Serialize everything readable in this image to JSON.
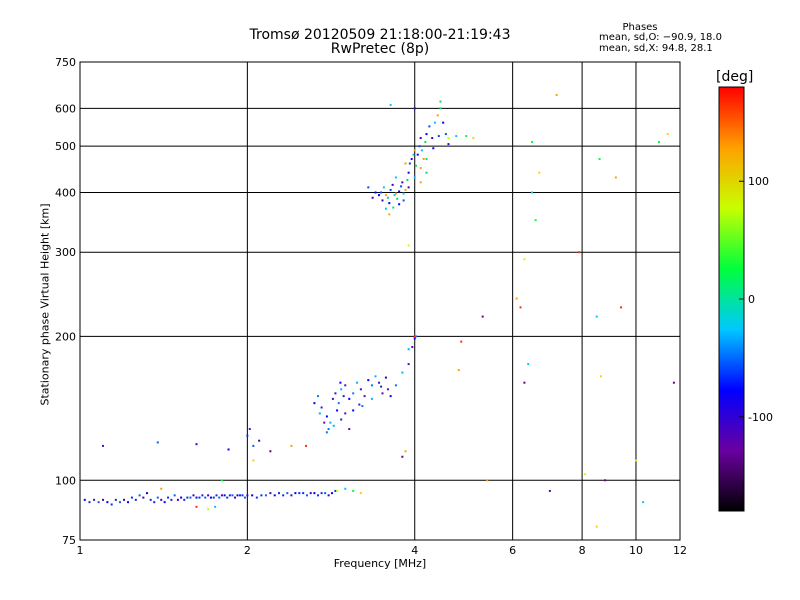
{
  "chart_data": {
    "type": "scatter",
    "title": "Tromsø 20120509 21:18:00-21:19:43",
    "subtitle": "RwPretec (8p)",
    "xlabel": "Frequency [MHz]",
    "ylabel": "Stationary phase Virtual Height [km]",
    "x_scale": "log",
    "y_scale": "log",
    "xlim": [
      1,
      12
    ],
    "ylim": [
      75,
      750
    ],
    "x_ticks": [
      1,
      2,
      4,
      6,
      8,
      10,
      12
    ],
    "y_ticks": [
      75,
      100,
      200,
      300,
      400,
      500,
      600,
      750
    ],
    "grid": true,
    "phases_box": {
      "heading": "Phases",
      "line_o": "mean, sd,O: −90.9, 18.0",
      "line_x": "mean, sd,X:  94.8, 28.1"
    },
    "colorbar": {
      "unit": "[deg]",
      "range": [
        -180,
        180
      ],
      "ticks": [
        -100,
        0,
        100
      ],
      "colors": [
        "#000000",
        "#6a00a0",
        "#0000ff",
        "#00c8ff",
        "#00ff3c",
        "#c8ff00",
        "#ffa000",
        "#ff0000"
      ]
    },
    "series": [
      {
        "points": [
          [
            1.02,
            91
          ],
          [
            1.04,
            90
          ],
          [
            1.06,
            91
          ],
          [
            1.08,
            90
          ],
          [
            1.1,
            91
          ],
          [
            1.12,
            90
          ],
          [
            1.14,
            89
          ],
          [
            1.16,
            91
          ],
          [
            1.18,
            90
          ],
          [
            1.2,
            91
          ],
          [
            1.22,
            90
          ],
          [
            1.24,
            92
          ],
          [
            1.26,
            91
          ],
          [
            1.28,
            93
          ],
          [
            1.3,
            92
          ],
          [
            1.32,
            94
          ],
          [
            1.34,
            91
          ],
          [
            1.36,
            90
          ],
          [
            1.38,
            92
          ],
          [
            1.4,
            91
          ],
          [
            1.42,
            90
          ],
          [
            1.44,
            92
          ],
          [
            1.46,
            91
          ],
          [
            1.48,
            93
          ],
          [
            1.5,
            91
          ],
          [
            1.52,
            92
          ],
          [
            1.54,
            91
          ],
          [
            1.56,
            92
          ],
          [
            1.58,
            92
          ],
          [
            1.6,
            93
          ],
          [
            1.62,
            92
          ],
          [
            1.64,
            92
          ],
          [
            1.66,
            93
          ],
          [
            1.68,
            92
          ],
          [
            1.7,
            93
          ],
          [
            1.72,
            92
          ],
          [
            1.74,
            92
          ],
          [
            1.76,
            93
          ],
          [
            1.78,
            92
          ],
          [
            1.8,
            93
          ],
          [
            1.82,
            93
          ],
          [
            1.84,
            92
          ],
          [
            1.86,
            93
          ],
          [
            1.88,
            93
          ],
          [
            1.9,
            92
          ],
          [
            1.92,
            93
          ],
          [
            1.94,
            93
          ],
          [
            1.96,
            93
          ],
          [
            1.98,
            92
          ],
          [
            2.0,
            93
          ],
          [
            2.04,
            93
          ],
          [
            2.08,
            92
          ],
          [
            2.12,
            93
          ],
          [
            2.16,
            93
          ],
          [
            2.2,
            94
          ],
          [
            2.24,
            93
          ],
          [
            2.28,
            94
          ],
          [
            2.32,
            93
          ],
          [
            2.36,
            94
          ],
          [
            2.4,
            93
          ],
          [
            2.44,
            94
          ],
          [
            2.48,
            94
          ],
          [
            2.52,
            94
          ],
          [
            2.56,
            93
          ],
          [
            2.6,
            94
          ],
          [
            2.64,
            94
          ],
          [
            2.68,
            93
          ],
          [
            2.72,
            94
          ],
          [
            2.76,
            94
          ],
          [
            2.8,
            93
          ],
          [
            2.84,
            94
          ],
          [
            2.88,
            95
          ],
          [
            1.1,
            118
          ],
          [
            1.38,
            120
          ],
          [
            1.62,
            119
          ],
          [
            1.85,
            116
          ],
          [
            2.0,
            124
          ],
          [
            2.02,
            128
          ],
          [
            2.05,
            118
          ],
          [
            2.1,
            121
          ]
        ]
      },
      {
        "points": [
          [
            2.64,
            145
          ],
          [
            2.68,
            150
          ],
          [
            2.7,
            138
          ],
          [
            2.72,
            142
          ],
          [
            2.75,
            132
          ],
          [
            2.78,
            136
          ],
          [
            2.8,
            128
          ],
          [
            2.82,
            132
          ],
          [
            2.85,
            148
          ],
          [
            2.88,
            152
          ],
          [
            2.9,
            140
          ],
          [
            2.92,
            145
          ],
          [
            2.95,
            155
          ],
          [
            2.98,
            150
          ],
          [
            3.0,
            158
          ],
          [
            3.05,
            148
          ],
          [
            3.1,
            152
          ],
          [
            3.15,
            160
          ],
          [
            3.2,
            155
          ],
          [
            3.25,
            150
          ],
          [
            3.3,
            162
          ],
          [
            3.35,
            158
          ],
          [
            3.4,
            165
          ],
          [
            3.45,
            160
          ],
          [
            3.5,
            152
          ],
          [
            3.55,
            164
          ],
          [
            2.78,
            126
          ],
          [
            2.86,
            130
          ],
          [
            2.95,
            134
          ],
          [
            3.05,
            128
          ],
          [
            3.1,
            140
          ],
          [
            3.22,
            143
          ],
          [
            3.35,
            148
          ],
          [
            3.48,
            157
          ],
          [
            3.58,
            155
          ],
          [
            3.62,
            150
          ],
          [
            3.7,
            158
          ],
          [
            3.8,
            168
          ],
          [
            3.9,
            175
          ],
          [
            3.96,
            190
          ],
          [
            4.0,
            198
          ],
          [
            4.02,
            200
          ],
          [
            3.9,
            188
          ],
          [
            3.18,
            144
          ],
          [
            3.0,
            138
          ],
          [
            2.94,
            160
          ]
        ]
      },
      {
        "points": [
          [
            3.45,
            395
          ],
          [
            3.48,
            400
          ],
          [
            3.5,
            385
          ],
          [
            3.52,
            410
          ],
          [
            3.55,
            395
          ],
          [
            3.58,
            390
          ],
          [
            3.6,
            380
          ],
          [
            3.62,
            405
          ],
          [
            3.65,
            415
          ],
          [
            3.68,
            395
          ],
          [
            3.7,
            398
          ],
          [
            3.72,
            388
          ],
          [
            3.75,
            402
          ],
          [
            3.78,
            412
          ],
          [
            3.8,
            420
          ],
          [
            3.82,
            398
          ],
          [
            3.85,
            405
          ],
          [
            3.88,
            425
          ],
          [
            3.9,
            440
          ],
          [
            3.92,
            460
          ],
          [
            3.95,
            470
          ],
          [
            3.98,
            480
          ],
          [
            4.0,
            490
          ],
          [
            4.02,
            455
          ],
          [
            4.05,
            480
          ],
          [
            4.08,
            500
          ],
          [
            4.1,
            520
          ],
          [
            4.12,
            490
          ],
          [
            4.15,
            470
          ],
          [
            4.18,
            510
          ],
          [
            4.2,
            530
          ],
          [
            4.25,
            550
          ],
          [
            4.3,
            520
          ],
          [
            4.35,
            560
          ],
          [
            4.4,
            580
          ],
          [
            4.45,
            600
          ],
          [
            4.5,
            560
          ],
          [
            4.55,
            530
          ],
          [
            4.6,
            505
          ],
          [
            3.55,
            370
          ],
          [
            3.6,
            360
          ],
          [
            3.66,
            372
          ],
          [
            3.75,
            378
          ],
          [
            3.82,
            385
          ],
          [
            3.9,
            410
          ],
          [
            4.0,
            430
          ],
          [
            4.1,
            450
          ],
          [
            4.2,
            470
          ],
          [
            4.32,
            495
          ],
          [
            4.42,
            525
          ],
          [
            4.0,
            600
          ],
          [
            3.62,
            610
          ],
          [
            4.1,
            420
          ],
          [
            4.2,
            440
          ],
          [
            3.4,
            400
          ],
          [
            3.3,
            410
          ],
          [
            3.36,
            390
          ],
          [
            3.7,
            430
          ],
          [
            3.85,
            460
          ],
          [
            4.45,
            620
          ]
        ]
      },
      {
        "points": [
          [
            1.4,
            96
          ],
          [
            1.62,
            88
          ],
          [
            1.7,
            87
          ],
          [
            1.75,
            88
          ],
          [
            1.8,
            100
          ],
          [
            2.05,
            110
          ],
          [
            2.2,
            115
          ],
          [
            2.4,
            118
          ],
          [
            2.55,
            118
          ],
          [
            2.9,
            95
          ],
          [
            3.0,
            96
          ],
          [
            3.1,
            95
          ],
          [
            3.2,
            94
          ],
          [
            3.8,
            112
          ],
          [
            3.85,
            115
          ],
          [
            4.0,
            200
          ],
          [
            4.6,
            520
          ],
          [
            4.75,
            525
          ],
          [
            4.95,
            525
          ],
          [
            5.1,
            520
          ],
          [
            5.3,
            220
          ],
          [
            5.4,
            100
          ],
          [
            6.2,
            230
          ],
          [
            6.3,
            290
          ],
          [
            6.4,
            175
          ],
          [
            6.5,
            510
          ],
          [
            6.7,
            440
          ],
          [
            7.0,
            95
          ],
          [
            7.2,
            640
          ],
          [
            7.9,
            300
          ],
          [
            8.1,
            103
          ],
          [
            8.5,
            220
          ],
          [
            8.6,
            470
          ],
          [
            8.65,
            165
          ],
          [
            8.8,
            100
          ],
          [
            9.2,
            430
          ],
          [
            9.4,
            230
          ],
          [
            10.0,
            110
          ],
          [
            10.3,
            90
          ],
          [
            11.0,
            510
          ],
          [
            11.4,
            530
          ],
          [
            11.7,
            160
          ],
          [
            6.1,
            240
          ],
          [
            4.85,
            195
          ],
          [
            3.9,
            310
          ],
          [
            6.5,
            400
          ],
          [
            6.6,
            350
          ],
          [
            8.5,
            80
          ],
          [
            6.3,
            160
          ],
          [
            4.8,
            170
          ]
        ]
      }
    ]
  }
}
